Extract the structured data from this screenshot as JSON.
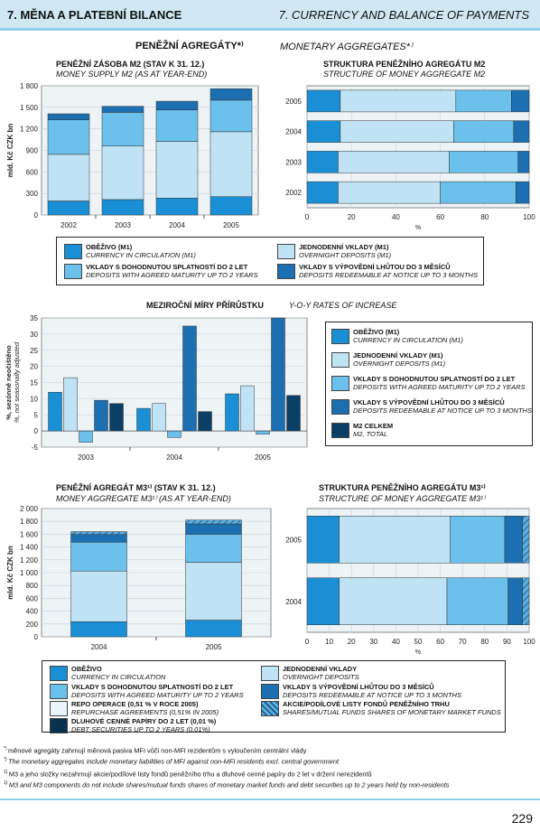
{
  "header": {
    "left": "7. MĚNA A PLATEBNÍ BILANCE",
    "right": "7. CURRENCY AND BALANCE OF PAYMENTS"
  },
  "section1": {
    "title_cz": "PENĚŽNÍ AGREGÁTY*⁾",
    "title_en": "MONETARY AGGREGATES*⁾"
  },
  "colors": {
    "currency": "#1a8fd6",
    "overnight": "#bfe3f5",
    "agreed": "#6cc0ec",
    "notice": "#1c6fb0",
    "total": "#0b3f66",
    "repo": "#e9f5fb",
    "debt": "#08324f",
    "funds": "#5aaee0"
  },
  "legend1": [
    {
      "cz": "OBĚŽIVO (M1)",
      "en": "CURRENCY IN CIRCULATION (M1)",
      "color": "#1a8fd6"
    },
    {
      "cz": "JEDNODENNÍ VKLADY (M1)",
      "en": "OVERNIGHT DEPOSITS (M1)",
      "color": "#bfe3f5"
    },
    {
      "cz": "VKLADY S DOHODNUTOU SPLATNOSTÍ DO 2 LET",
      "en": "DEPOSITS WITH AGREED MATURITY UP TO 2 YEARS",
      "color": "#6cc0ec"
    },
    {
      "cz": "VKLADY S VÝPOVĚDNÍ LHŮTOU DO 3 MĚSÍCŮ",
      "en": "DEPOSITS REDEEMABLE AT NOTICE UP TO 3 MONTHS",
      "color": "#1c6fb0"
    }
  ],
  "legend2": [
    {
      "cz": "OBĚŽIVO (M1)",
      "en": "CURRENCY IN CIRCULATION (M1)",
      "color": "#1a8fd6"
    },
    {
      "cz": "JEDNODENNÍ VKLADY (M1)",
      "en": "OVERNIGHT DEPOSITS (M1)",
      "color": "#bfe3f5"
    },
    {
      "cz": "VKLADY S DOHODNUTOU SPLATNOSTÍ DO 2 LET",
      "en": "DEPOSITS WITH AGREED MATURITY UP TO 2 YEARS",
      "color": "#6cc0ec"
    },
    {
      "cz": "VKLADY S VÝPOVĚDNÍ LHŮTOU DO 3 MĚSÍCŮ",
      "en": "DEPOSITS REDEEMABLE AT NOTICE UP TO 3 MONTHS",
      "color": "#1c6fb0"
    },
    {
      "cz": "M2 CELKEM",
      "en": "M2, TOTAL",
      "color": "#0b3f66"
    }
  ],
  "legend3": [
    {
      "cz": "OBĚŽIVO",
      "en": "CURRENCY IN CIRCULATION",
      "color": "#1a8fd6"
    },
    {
      "cz": "JEDNODENNÍ VKLADY",
      "en": "OVERNIGHT DEPOSITS",
      "color": "#bfe3f5"
    },
    {
      "cz": "VKLADY S DOHODNUTOU SPLATNOSTÍ DO 2 LET",
      "en": "DEPOSITS WITH AGREED MATURITY UP TO 2 YEARS",
      "color": "#6cc0ec"
    },
    {
      "cz": "VKLADY S VÝPOVĚDNÍ LHŮTOU DO 3 MĚSÍCŮ",
      "en": "DEPOSITS REDEEMABLE AT NOTICE UP TO 3 MONTHS",
      "color": "#1c6fb0"
    },
    {
      "cz": "REPO OPERACE (0,51 % V ROCE 2005)",
      "en": "REPURCHASE AGREEMENTS (0,51% IN 2005)",
      "color": "#e9f5fb"
    },
    {
      "cz": "AKCIE/PODÍLOVÉ LISTY FONDŮ PENĚŽNÍHO TRHU",
      "en": "SHARES/MUTUAL FUNDS SHARES OF MONETARY MARKET FUNDS",
      "color": "#5aaee0",
      "hatch": true
    },
    {
      "cz": "DLUHOVÉ CENNÉ PAPÍRY DO 2 LET (0,01 %)",
      "en": "DEBT SECURITIES UP TO 2 YEARS (0,01%)",
      "color": "#08324f"
    }
  ],
  "footnotes": [
    {
      "mark": "*)",
      "text": "měnové agregáty zahrnují měnová pasiva MFI vůči non-MFI rezidentům s vyloučením centrální vlády",
      "italic": false
    },
    {
      "mark": "*)",
      "text": "The monetary aggregates include monetary liabilities of MFI against non-MFI residents excl. central government",
      "italic": true
    },
    {
      "mark": "1)",
      "text": "M3 a jeho složky nezahrnují akcie/podílové listy fondů peněžního trhu a dluhové cenné papíry do 2 let v držení nerezidentů",
      "italic": false
    },
    {
      "mark": "1)",
      "text": "M3 and M3 components do not include shares/mutual funds shares of monetary market funds and debt securities up to 2 years held by non-residents",
      "italic": true
    }
  ],
  "page_number": "229",
  "chart_data": [
    {
      "type": "bar",
      "stacked": true,
      "title": "PENĚŽNÍ ZÁSOBA M2 (STAV K 31. 12.)",
      "subtitle": "MONEY SUPPLY M2 (AS AT YEAR-END)",
      "ylabel": "mld. Kč   CZK bn",
      "categories": [
        "2002",
        "2003",
        "2004",
        "2005"
      ],
      "ylim": [
        0,
        1800
      ],
      "yticks": [
        0,
        300,
        600,
        900,
        1200,
        1500,
        1800
      ],
      "series": [
        {
          "name": "OBĚŽIVO (M1)",
          "values": [
            195,
            215,
            235,
            255
          ]
        },
        {
          "name": "JEDNODENNÍ VKLADY (M1)",
          "values": [
            650,
            745,
            790,
            905
          ]
        },
        {
          "name": "VKLADY S DOHODNUTOU SPLATNOSTÍ DO 2 LET",
          "values": [
            480,
            470,
            440,
            440
          ]
        },
        {
          "name": "VKLADY S VÝPOVĚDNÍ LHŮTOU DO 3 MĚSÍCŮ",
          "values": [
            85,
            85,
            120,
            160
          ]
        }
      ]
    },
    {
      "type": "bar",
      "orientation": "horizontal",
      "stacked": true,
      "title": "STRUKTURA PENĚŽNÍHO AGREGÁTU M2",
      "subtitle": "STRUCTURE OF MONEY AGGREGATE M2",
      "xlabel": "%",
      "categories": [
        "2005",
        "2004",
        "2003",
        "2002"
      ],
      "xlim": [
        0,
        100
      ],
      "xticks": [
        0,
        20,
        40,
        60,
        80,
        100
      ],
      "series": [
        {
          "name": "OBĚŽIVO (M1)",
          "values": [
            15,
            15,
            14,
            14
          ]
        },
        {
          "name": "JEDNODENNÍ VKLADY (M1)",
          "values": [
            52,
            51,
            50,
            46
          ]
        },
        {
          "name": "VKLADY S DOHODNUTOU SPLATNOSTÍ DO 2 LET",
          "values": [
            25,
            27,
            31,
            34
          ]
        },
        {
          "name": "VKLADY S VÝPOVĚDNÍ LHŮTOU DO 3 MĚSÍCŮ",
          "values": [
            8,
            7,
            5,
            6
          ]
        }
      ]
    },
    {
      "type": "bar",
      "title": "MEZIROČNÍ MÍRY PŘÍRŮSTKU",
      "subtitle": "Y-O-Y RATES OF INCREASE",
      "ylabel": "%, sezónně neočištěno   %, not seasonally adjusted",
      "categories": [
        "2003",
        "2004",
        "2005"
      ],
      "ylim": [
        -5,
        35
      ],
      "yticks": [
        -5,
        0,
        5,
        10,
        15,
        20,
        25,
        30,
        35
      ],
      "series": [
        {
          "name": "OBĚŽIVO (M1)",
          "values": [
            12,
            7,
            11.5
          ]
        },
        {
          "name": "JEDNODENNÍ VKLADY (M1)",
          "values": [
            16.5,
            8.5,
            14
          ]
        },
        {
          "name": "VKLADY S DOHODNUTOU SPLATNOSTÍ DO 2 LET",
          "values": [
            -3.5,
            -2,
            -1
          ]
        },
        {
          "name": "VKLADY S VÝPOVĚDNÍ LHŮTOU DO 3 MĚSÍCŮ",
          "values": [
            9.5,
            32.5,
            35
          ]
        },
        {
          "name": "M2 CELKEM",
          "values": [
            8.5,
            6,
            11
          ]
        }
      ]
    },
    {
      "type": "bar",
      "stacked": true,
      "title": "PENĚŽNÍ AGREGÁT M3¹⁾ (STAV K 31. 12.)",
      "subtitle": "MONEY AGGREGATE M3¹⁾ (AS AT YEAR-END)",
      "ylabel": "mld. Kč   CZK bn",
      "categories": [
        "2004",
        "2005"
      ],
      "ylim": [
        0,
        2000
      ],
      "yticks": [
        0,
        200,
        400,
        600,
        800,
        1000,
        1200,
        1400,
        1600,
        1800,
        2000
      ],
      "series": [
        {
          "name": "OBĚŽIVO",
          "values": [
            235,
            260
          ]
        },
        {
          "name": "JEDNODENNÍ VKLADY",
          "values": [
            790,
            900
          ]
        },
        {
          "name": "VKLADY S DOHODNUTOU SPLATNOSTÍ DO 2 LET",
          "values": [
            450,
            440
          ]
        },
        {
          "name": "VKLADY S VÝPOVĚDNÍ LHŮTOU DO 3 MĚSÍCŮ",
          "values": [
            120,
            160
          ]
        },
        {
          "name": "AKCIE/PODÍLOVÉ LISTY FONDŮ PENĚŽNÍHO TRHU",
          "values": [
            45,
            60
          ]
        }
      ]
    },
    {
      "type": "bar",
      "orientation": "horizontal",
      "stacked": true,
      "title": "STRUKTURA PENĚŽNÍHO AGREGÁTU M3¹⁾",
      "subtitle": "STRUCTURE OF MONEY AGGREGATE M3¹⁾",
      "xlabel": "%",
      "categories": [
        "2005",
        "2004"
      ],
      "xlim": [
        0,
        100
      ],
      "xticks": [
        0,
        10,
        20,
        30,
        40,
        50,
        60,
        70,
        80,
        90,
        100
      ],
      "series": [
        {
          "name": "OBĚŽIVO",
          "values": [
            14.5,
            14.5
          ]
        },
        {
          "name": "JEDNODENNÍ VKLADY",
          "values": [
            50,
            48.5
          ]
        },
        {
          "name": "VKLADY S DOHODNUTOU SPLATNOSTÍ DO 2 LET",
          "values": [
            24.5,
            27.5
          ]
        },
        {
          "name": "VKLADY S VÝPOVĚDNÍ LHŮTOU DO 3 MĚSÍCŮ",
          "values": [
            8,
            6.5
          ]
        },
        {
          "name": "AKCIE/PODÍLOVÉ LISTY FONDŮ PENĚŽNÍHO TRHU",
          "values": [
            3,
            3
          ]
        }
      ]
    }
  ]
}
